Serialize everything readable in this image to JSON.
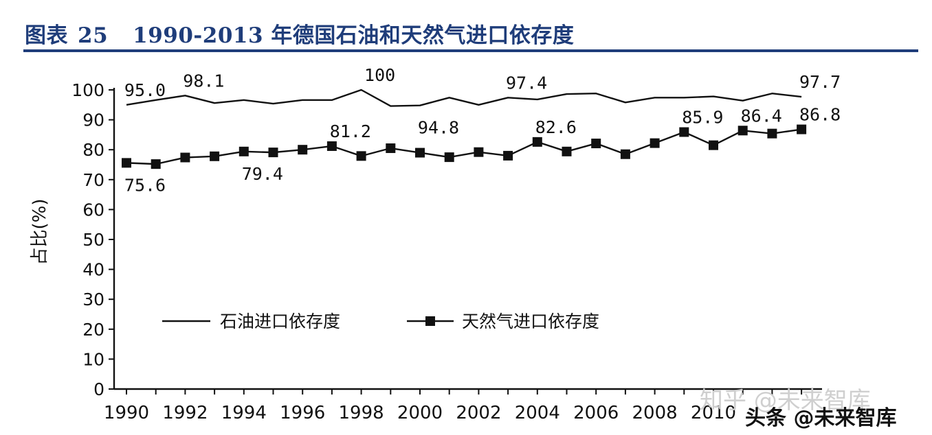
{
  "figure": {
    "label": "图表",
    "number": "25",
    "title": "1990-2013 年德国石油和天然气进口依存度"
  },
  "chart_data": {
    "type": "line",
    "ylabel": "占比(%)",
    "xlabel": "",
    "ylim": [
      0,
      100
    ],
    "y_ticks": [
      "0",
      "10",
      "20",
      "30",
      "40",
      "50",
      "60",
      "70",
      "80",
      "90",
      "100"
    ],
    "x_ticks": [
      "1990",
      "1992",
      "1994",
      "1996",
      "1998",
      "2000",
      "2002",
      "2004",
      "2006",
      "2008",
      "2010"
    ],
    "x": [
      1990,
      1991,
      1992,
      1993,
      1994,
      1995,
      1996,
      1997,
      1998,
      1999,
      2000,
      2001,
      2002,
      2003,
      2004,
      2005,
      2006,
      2007,
      2008,
      2009,
      2010,
      2011,
      2012,
      2013
    ],
    "series": [
      {
        "name": "石油进口依存度",
        "marker": "none",
        "values": [
          95.0,
          96.6,
          98.1,
          95.6,
          96.6,
          95.4,
          96.6,
          96.6,
          100,
          94.6,
          94.8,
          97.4,
          95.0,
          97.4,
          96.8,
          98.6,
          98.8,
          95.8,
          97.4,
          97.4,
          97.8,
          96.4,
          98.8,
          97.7
        ]
      },
      {
        "name": "天然气进口依存度",
        "marker": "square",
        "values": [
          75.6,
          75.2,
          77.4,
          77.8,
          79.4,
          79.1,
          80.0,
          81.2,
          77.9,
          80.5,
          79.0,
          77.5,
          79.2,
          78.0,
          82.6,
          79.4,
          82.1,
          78.5,
          82.2,
          85.9,
          81.5,
          86.4,
          85.4,
          86.8
        ]
      }
    ],
    "annotations": [
      {
        "series": 0,
        "year": 1990,
        "text": "95.0",
        "pos": "above"
      },
      {
        "series": 0,
        "year": 1992,
        "text": "98.1",
        "pos": "above"
      },
      {
        "series": 0,
        "year": 1998,
        "text": "100",
        "pos": "above"
      },
      {
        "series": 0,
        "year": 2000,
        "text": "94.8",
        "pos": "below"
      },
      {
        "series": 0,
        "year": 2003,
        "text": "97.4",
        "pos": "above"
      },
      {
        "series": 0,
        "year": 2013,
        "text": "97.7",
        "pos": "above"
      },
      {
        "series": 1,
        "year": 1990,
        "text": "75.6",
        "pos": "below"
      },
      {
        "series": 1,
        "year": 1994,
        "text": "79.4",
        "pos": "below"
      },
      {
        "series": 1,
        "year": 1997,
        "text": "81.2",
        "pos": "above"
      },
      {
        "series": 1,
        "year": 2004,
        "text": "82.6",
        "pos": "above"
      },
      {
        "series": 1,
        "year": 2009,
        "text": "85.9",
        "pos": "above"
      },
      {
        "series": 1,
        "year": 2011,
        "text": "86.4",
        "pos": "above"
      },
      {
        "series": 1,
        "year": 2013,
        "text": "86.8",
        "pos": "above"
      }
    ],
    "legend_position": "lower-center",
    "grid": false
  },
  "watermarks": {
    "zhihu": "知乎 @未来智库",
    "toutiao": "头条 @未来智库"
  },
  "colors": {
    "title": "#1f3d7a",
    "ink": "#111111"
  }
}
